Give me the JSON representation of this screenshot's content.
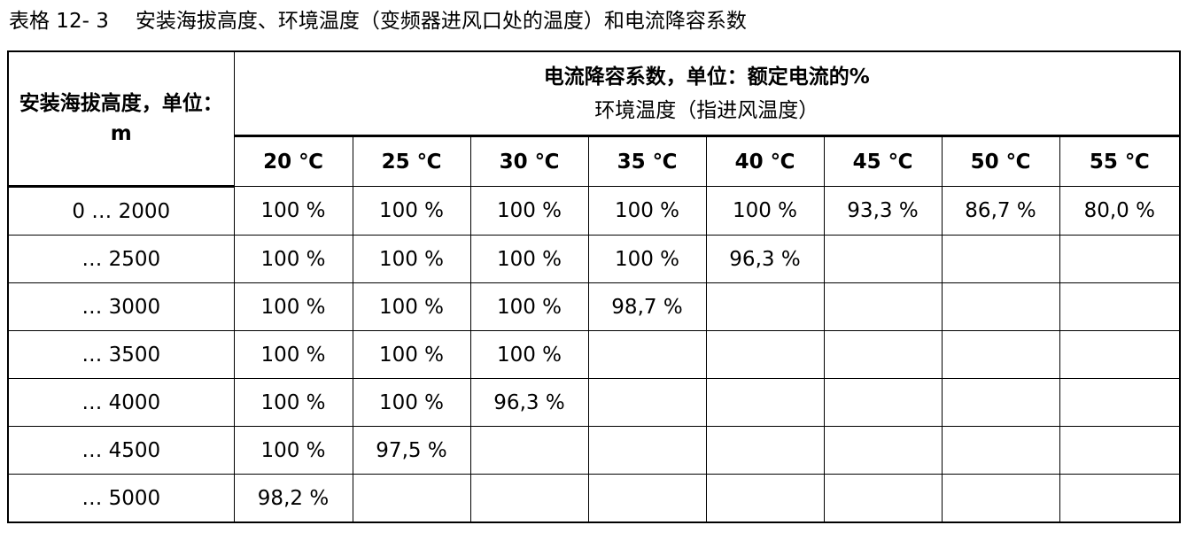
{
  "caption": {
    "label": "表格 12- 3",
    "text": "安装海拔高度、环境温度（变频器进风口处的温度）和电流降容系数"
  },
  "table": {
    "corner_header": "安装海拔高度，单位：m",
    "group_title": "电流降容系数，单位：额定电流的%",
    "group_subtitle": "环境温度（指进风温度）",
    "temperatures": [
      "20 ℃",
      "25 ℃",
      "30 ℃",
      "35 ℃",
      "40 ℃",
      "45 ℃",
      "50 ℃",
      "55 ℃"
    ],
    "rows": [
      {
        "altitude": "0 … 2000",
        "values": [
          "100 %",
          "100 %",
          "100 %",
          "100 %",
          "100 %",
          "93,3 %",
          "86,7 %",
          "80,0 %"
        ]
      },
      {
        "altitude": "… 2500",
        "values": [
          "100 %",
          "100 %",
          "100 %",
          "100 %",
          "96,3 %",
          "",
          "",
          ""
        ]
      },
      {
        "altitude": "… 3000",
        "values": [
          "100 %",
          "100 %",
          "100 %",
          "98,7 %",
          "",
          "",
          "",
          ""
        ]
      },
      {
        "altitude": "… 3500",
        "values": [
          "100 %",
          "100 %",
          "100 %",
          "",
          "",
          "",
          "",
          ""
        ]
      },
      {
        "altitude": "… 4000",
        "values": [
          "100 %",
          "100 %",
          "96,3 %",
          "",
          "",
          "",
          "",
          ""
        ]
      },
      {
        "altitude": "… 4500",
        "values": [
          "100 %",
          "97,5 %",
          "",
          "",
          "",
          "",
          "",
          ""
        ]
      },
      {
        "altitude": "… 5000",
        "values": [
          "98,2 %",
          "",
          "",
          "",
          "",
          "",
          "",
          ""
        ]
      }
    ]
  }
}
